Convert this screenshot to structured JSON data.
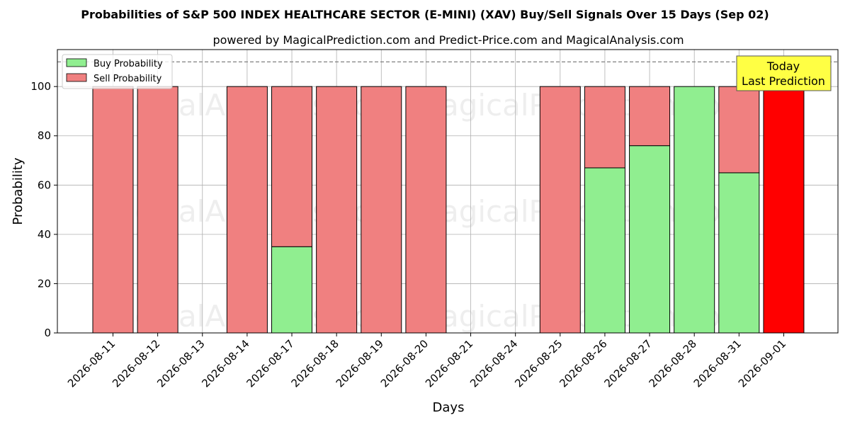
{
  "chart_data": {
    "type": "bar",
    "stacked": true,
    "title": "Probabilities of S&P 500 INDEX HEALTHCARE SECTOR (E-MINI) (XAV) Buy/Sell Signals Over 15 Days (Sep 02)",
    "subtitle": "powered by MagicalPrediction.com and Predict-Price.com and MagicalAnalysis.com",
    "xlabel": "Days",
    "ylabel": "Probability",
    "ylim": [
      0,
      115
    ],
    "yticks": [
      0,
      20,
      40,
      60,
      80,
      100
    ],
    "reference_line": 110,
    "grid": true,
    "legend_position": "top-left",
    "categories": [
      "2026-08-11",
      "2026-08-12",
      "2026-08-13",
      "2026-08-14",
      "2026-08-17",
      "2026-08-18",
      "2026-08-19",
      "2026-08-20",
      "2026-08-21",
      "2026-08-24",
      "2026-08-25",
      "2026-08-26",
      "2026-08-27",
      "2026-08-28",
      "2026-08-31",
      "2026-09-01"
    ],
    "series": [
      {
        "name": "Buy Probability",
        "color": "#90ee90",
        "values": [
          0,
          0,
          null,
          0,
          35,
          0,
          0,
          0,
          null,
          null,
          0,
          67,
          76,
          100,
          65,
          0
        ]
      },
      {
        "name": "Sell Probability",
        "color": "#f08080",
        "values": [
          100,
          100,
          null,
          100,
          65,
          100,
          100,
          100,
          null,
          null,
          100,
          33,
          24,
          0,
          35,
          100
        ]
      }
    ],
    "highlight": {
      "category": "2026-09-01",
      "color": "#ff0000"
    },
    "annotation": {
      "lines": [
        "Today",
        "Last Prediction"
      ],
      "background": "#ffff44"
    },
    "watermarks": [
      "MagicalAnalysis.com",
      "MagicalPrediction.com"
    ]
  }
}
